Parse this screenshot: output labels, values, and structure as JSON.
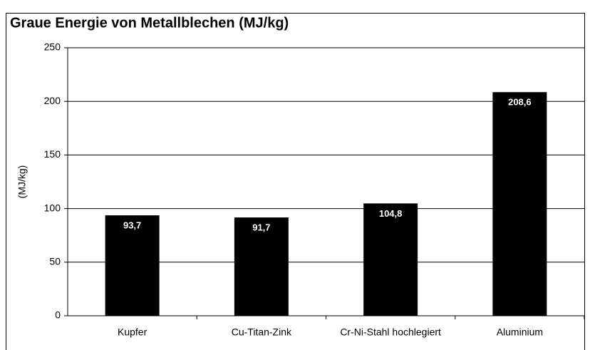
{
  "chart_data": {
    "type": "bar",
    "title": "Graue Energie von Metallblechen (MJ/kg)",
    "y_label": "(MJ/kg)",
    "categories": [
      "Kupfer",
      "Cu-Titan-Zink",
      "Cr-Ni-Stahl hochlegiert",
      "Aluminium"
    ],
    "values": [
      93.7,
      91.7,
      104.8,
      208.6
    ],
    "value_labels": [
      "93,7",
      "91,7",
      "104,8",
      "208,6"
    ],
    "color": "#000000",
    "ylim": [
      0,
      250
    ],
    "yticks": [
      0,
      50,
      100,
      150,
      200,
      250
    ],
    "grid": true
  }
}
